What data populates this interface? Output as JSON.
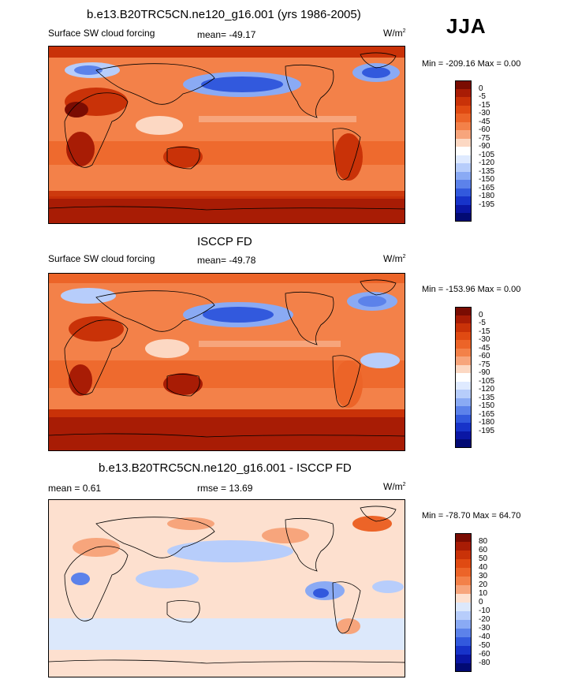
{
  "season": "JJA",
  "panels": [
    {
      "id": "model",
      "title": "b.e13.B20TRC5CN.ne120_g16.001 (yrs 1986-2005)",
      "left_label": "Surface SW cloud forcing",
      "center_label": "mean= -49.17",
      "units_base": "W/m",
      "units_exp": "2",
      "minmax": "Min = -209.16 Max =   0.00"
    },
    {
      "id": "obs",
      "title": "ISCCP FD",
      "left_label": "Surface SW cloud forcing",
      "center_label": "mean= -49.78",
      "units_base": "W/m",
      "units_exp": "2",
      "minmax": "Min = -153.96 Max =   0.00"
    },
    {
      "id": "diff",
      "title": "b.e13.B20TRC5CN.ne120_g16.001 - ISCCP FD",
      "left_label": "mean =   0.61",
      "center_label": "rmse =  13.69",
      "units_base": "W/m",
      "units_exp": "2",
      "minmax": "Min = -78.70 Max =  64.70"
    }
  ],
  "chart_data": [
    {
      "type": "heatmap",
      "title": "b.e13.B20TRC5CN.ne120_g16.001 (yrs 1986-2005)",
      "variable": "Surface SW cloud forcing",
      "units": "W/m2",
      "mean": -49.17,
      "min": -209.16,
      "max": 0.0,
      "colorbar_levels": [
        0,
        -5,
        -15,
        -30,
        -45,
        -60,
        -75,
        -90,
        -105,
        -120,
        -135,
        -150,
        -165,
        -180,
        -195
      ]
    },
    {
      "type": "heatmap",
      "title": "ISCCP FD",
      "variable": "Surface SW cloud forcing",
      "units": "W/m2",
      "mean": -49.78,
      "min": -153.96,
      "max": 0.0,
      "colorbar_levels": [
        0,
        -5,
        -15,
        -30,
        -45,
        -60,
        -75,
        -90,
        -105,
        -120,
        -135,
        -150,
        -165,
        -180,
        -195
      ]
    },
    {
      "type": "heatmap",
      "title": "b.e13.B20TRC5CN.ne120_g16.001 - ISCCP FD",
      "units": "W/m2",
      "mean": 0.61,
      "rmse": 13.69,
      "min": -78.7,
      "max": 64.7,
      "colorbar_levels": [
        80,
        60,
        50,
        40,
        30,
        20,
        10,
        0,
        -10,
        -20,
        -30,
        -40,
        -50,
        -60,
        -80
      ]
    }
  ],
  "colors": {
    "abs_scale": [
      "#7a0c02",
      "#a81c05",
      "#c93208",
      "#e04a12",
      "#ec6428",
      "#f38149",
      "#f7a57c",
      "#fcd8c3",
      "#ffffff",
      "#dfeaff",
      "#b7cdfb",
      "#8aaaf4",
      "#5c82ea",
      "#3259dd",
      "#1733c9",
      "#0a16a4",
      "#020a73"
    ],
    "diff_scale": [
      "#7a0c02",
      "#a81c05",
      "#c93208",
      "#e04a12",
      "#ec6428",
      "#f38149",
      "#f7a57c",
      "#fde0cf",
      "#dce8fb",
      "#b7cdfb",
      "#8aaaf4",
      "#5c82ea",
      "#3259dd",
      "#1733c9",
      "#0a16a4",
      "#020a73"
    ]
  }
}
